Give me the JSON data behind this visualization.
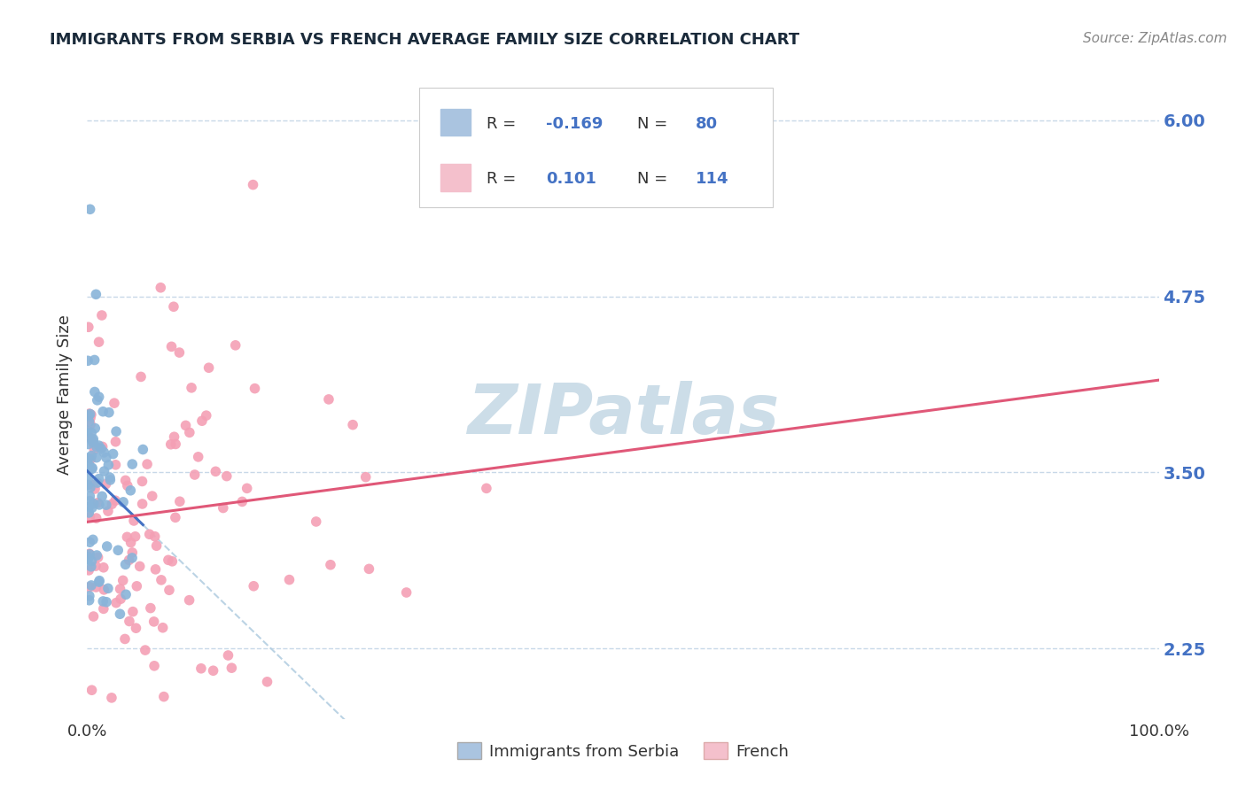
{
  "title": "IMMIGRANTS FROM SERBIA VS FRENCH AVERAGE FAMILY SIZE CORRELATION CHART",
  "source": "Source: ZipAtlas.com",
  "ylabel": "Average Family Size",
  "xlim": [
    0,
    1
  ],
  "ylim": [
    1.75,
    6.35
  ],
  "yticks": [
    2.25,
    3.5,
    4.75,
    6.0
  ],
  "ytick_labels": [
    "2.25",
    "3.50",
    "4.75",
    "6.00"
  ],
  "xtick_labels": [
    "0.0%",
    "100.0%"
  ],
  "series1_marker_color": "#89b4d9",
  "series1_line_color": "#4472c4",
  "series1_legend_color": "#aac4e0",
  "series2_marker_color": "#f4a0b5",
  "series2_line_color": "#e05878",
  "series2_legend_color": "#f4c0cc",
  "dash_line_color": "#b0cce0",
  "watermark": "ZIPatlas",
  "watermark_color": "#ccdde8",
  "background_color": "#ffffff",
  "grid_color": "#c8d8e8",
  "title_color": "#1a2a3a",
  "axis_label_color": "#4472c4",
  "text_color": "#333333",
  "source_color": "#888888",
  "seed": 42,
  "n1": 80,
  "n2": 114,
  "r1": -0.169,
  "r2": 0.101
}
